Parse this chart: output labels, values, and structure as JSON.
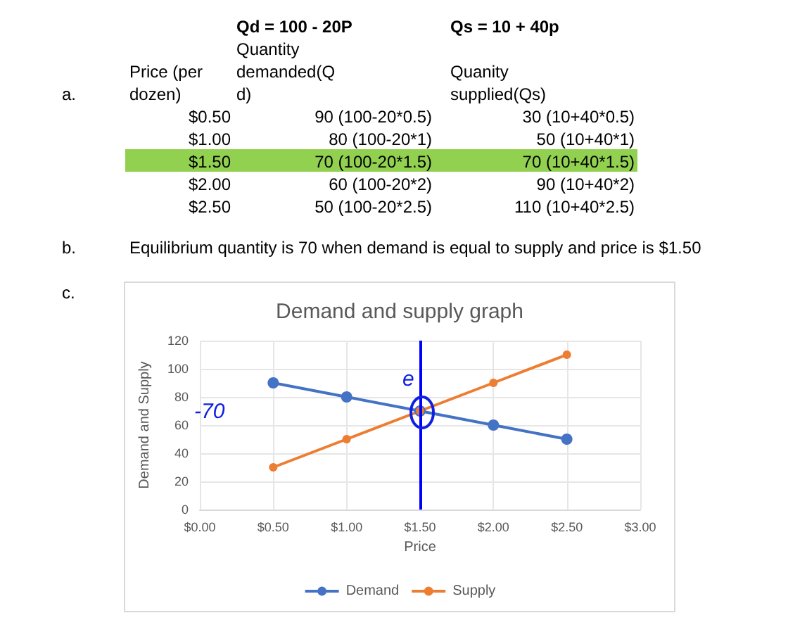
{
  "chart_data": {
    "type": "line",
    "title": "Demand and supply graph",
    "xlabel": "Price",
    "ylabel": "Demand and Supply",
    "x": [
      0.5,
      1.0,
      1.5,
      2.0,
      2.5
    ],
    "series": [
      {
        "name": "Demand",
        "color": "#4472c4",
        "values": [
          90,
          80,
          70,
          60,
          50
        ]
      },
      {
        "name": "Supply",
        "color": "#ed7d31",
        "values": [
          30,
          50,
          70,
          90,
          110
        ]
      }
    ],
    "xlim": [
      0,
      3
    ],
    "xticks": [
      {
        "value": 0,
        "label": "$0.00"
      },
      {
        "value": 0.5,
        "label": "$0.50"
      },
      {
        "value": 1,
        "label": "$1.00"
      },
      {
        "value": 1.5,
        "label": "$1.50"
      },
      {
        "value": 2,
        "label": "$2.00"
      },
      {
        "value": 2.5,
        "label": "$2.50"
      },
      {
        "value": 3,
        "label": "$3.00"
      }
    ],
    "ylim": [
      0,
      120
    ],
    "yticks": [
      0,
      20,
      40,
      60,
      80,
      100,
      120
    ],
    "grid": true,
    "legend": "bottom",
    "marker": "circle",
    "line_style": "solid",
    "ref_lines": [
      {
        "axis": "x",
        "value": 1.5,
        "color": "#0000ff"
      }
    ],
    "annotations": [
      "a.",
      "Price (per dozen)",
      "Qd = 100 - 20P",
      "Quantity demanded(Qd)",
      "Qs = 10 + 40p",
      "Quanity supplied(Qs)",
      "$0.50",
      "$1.00",
      "$1.50",
      "$2.00",
      "$2.50",
      "90 (100-20*0.5)",
      "80 (100-20*1)",
      "70 (100-20*1.5)",
      "60 (100-20*2)",
      "50 (100-20*2.5)",
      "30 (10+40*0.5)",
      "50 (10+40*1)",
      "70 (10+40*1.5)",
      "90 (10+40*2)",
      "110 (10+40*2.5)",
      "b.",
      "Equilibrium quantity is 70 when demand is equal to supply and price is $1.50",
      "c.",
      "e",
      "-70"
    ]
  }
}
